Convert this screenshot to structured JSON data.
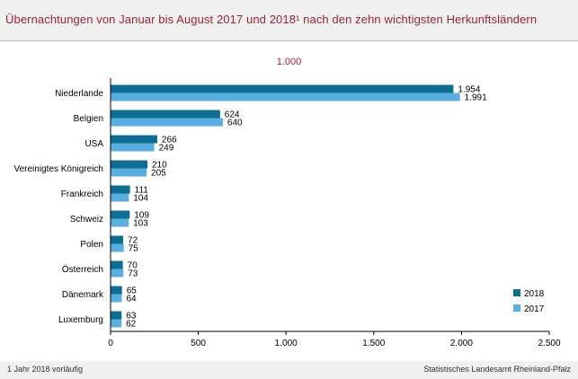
{
  "title": "Übernachtungen von Januar bis August 2017 und 2018¹ nach den zehn wichtigsten Herkunftsländern",
  "unit_label": "1.000",
  "footnote": "1 Jahr 2018 vorläufig",
  "source": "Statistisches Landesamt Rheinland-Pfalz",
  "colors": {
    "series_2018": "#0e6e91",
    "series_2017": "#5aaee0",
    "title": "#9a2331"
  },
  "chart_data": {
    "type": "bar",
    "orientation": "horizontal",
    "categories": [
      "Niederlande",
      "Belgien",
      "USA",
      "Vereinigtes Königreich",
      "Frankreich",
      "Schweiz",
      "Polen",
      "Österreich",
      "Dänemark",
      "Luxemburg"
    ],
    "series": [
      {
        "name": "2018",
        "values": [
          1954,
          624,
          266,
          210,
          111,
          109,
          72,
          70,
          65,
          63
        ],
        "labels": [
          "1.954",
          "624",
          "266",
          "210",
          "111",
          "109",
          "72",
          "70",
          "65",
          "63"
        ]
      },
      {
        "name": "2017",
        "values": [
          1991,
          640,
          249,
          205,
          104,
          103,
          75,
          73,
          64,
          62
        ],
        "labels": [
          "1.991",
          "640",
          "249",
          "205",
          "104",
          "103",
          "75",
          "73",
          "64",
          "62"
        ]
      }
    ],
    "xlim": [
      0,
      2500
    ],
    "xticks": [
      0,
      500,
      1000,
      1500,
      2000,
      2500
    ],
    "xtick_labels": [
      "0",
      "500",
      "1.000",
      "1.500",
      "2.000",
      "2.500"
    ],
    "legend_position": "bottom-right",
    "grid": false
  }
}
